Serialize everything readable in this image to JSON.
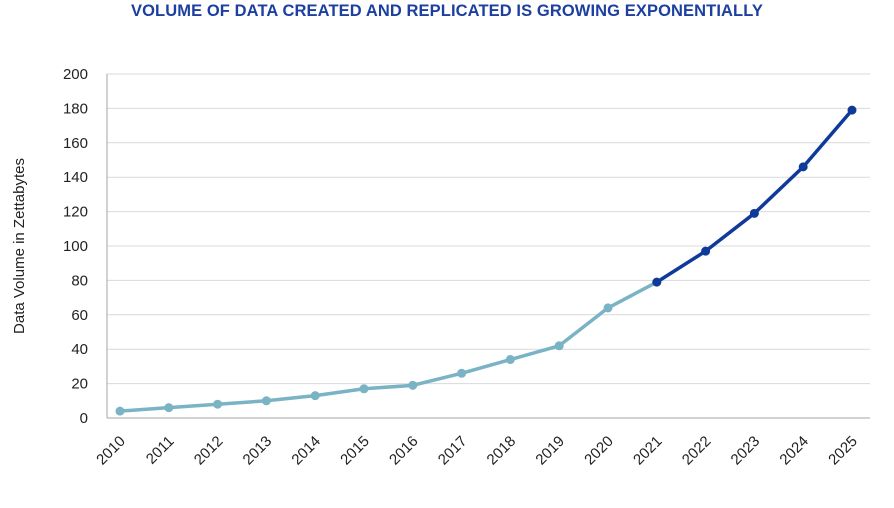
{
  "chart_data": {
    "type": "line",
    "title": "VOLUME OF DATA CREATED AND REPLICATED IS GROWING EXPONENTIALLY",
    "xlabel": "",
    "ylabel": "Data Volume in Zettabytes",
    "ylim": [
      0,
      200
    ],
    "yticks": [
      "0",
      "20",
      "40",
      "60",
      "80",
      "100",
      "120",
      "140",
      "160",
      "180",
      "200"
    ],
    "grid": true,
    "x": [
      "2010",
      "2011",
      "2012",
      "2013",
      "2014",
      "2015",
      "2016",
      "2017",
      "2018",
      "2019",
      "2020",
      "2021",
      "2022",
      "2023",
      "2024",
      "2025"
    ],
    "series": [
      {
        "color": "#7ab3c4",
        "x": [
          "2010",
          "2011",
          "2012",
          "2013",
          "2014",
          "2015",
          "2016",
          "2017",
          "2018",
          "2019",
          "2020",
          "2021"
        ],
        "values": [
          4,
          6,
          8,
          10,
          13,
          17,
          19,
          26,
          34,
          42,
          64,
          79
        ]
      },
      {
        "color": "#0f3a99",
        "x": [
          "2021",
          "2022",
          "2023",
          "2024",
          "2025"
        ],
        "values": [
          79,
          97,
          119,
          146,
          179
        ]
      }
    ]
  },
  "colors": {
    "title": "#1c3fa0",
    "grid": "#d9d9d9",
    "axis": "#a6a6a6"
  }
}
